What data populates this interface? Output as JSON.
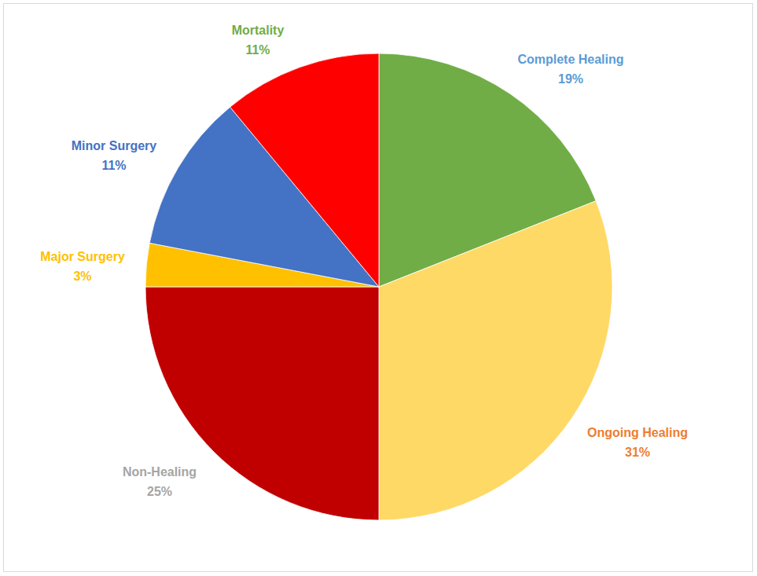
{
  "chart_data": {
    "type": "pie",
    "categories": [
      "Complete Healing",
      "Ongoing Healing",
      "Non-Healing",
      "Major Surgery",
      "Minor Surgery",
      "Mortality"
    ],
    "values": [
      19,
      31,
      25,
      3,
      11,
      11
    ],
    "value_labels": [
      "19%",
      "31%",
      "25%",
      "3%",
      "11%",
      "11%"
    ],
    "colors": [
      "#70ad47",
      "#ffd966",
      "#c00000",
      "#ffc000",
      "#4472c4",
      "#ff0000"
    ],
    "data_labels": true
  }
}
